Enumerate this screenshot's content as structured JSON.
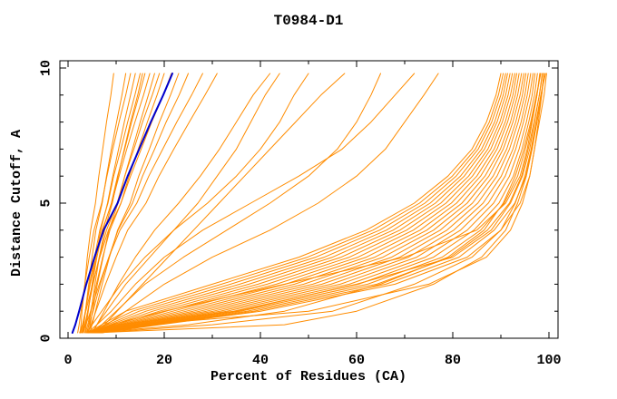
{
  "chart_data": {
    "type": "line",
    "title": "T0984-D1",
    "xlabel": "Percent of Residues (CA)",
    "ylabel": "Distance Cutoff, A",
    "xlim": [
      0,
      100
    ],
    "ylim": [
      0,
      10
    ],
    "x_major_ticks": [
      0,
      20,
      40,
      60,
      80,
      100
    ],
    "x_minor_step": 10,
    "y_major_ticks": [
      0,
      5,
      10
    ],
    "y_minor_step": 1,
    "grid": false,
    "legend": "none",
    "colors": {
      "model": "#ff8c00",
      "highlight": "#0000cd",
      "axis": "#000000",
      "background": "#ffffff"
    },
    "y_levels": [
      0.2,
      0.5,
      1,
      2,
      3,
      4,
      5,
      6,
      7,
      8,
      9,
      9.8
    ],
    "blue_curve": [
      0.9,
      1.5,
      2.3,
      3.8,
      5.5,
      7.4,
      10.3,
      12.4,
      14.8,
      17.2,
      19.8,
      21.7
    ],
    "orange_curves": [
      [
        2.5,
        2.7,
        2.9,
        3.5,
        4.0,
        4.7,
        5.7,
        6.4,
        7.2,
        8.0,
        8.9,
        9.5
      ],
      [
        3,
        3.3,
        3.6,
        4.3,
        5.0,
        5.8,
        7.1,
        8.0,
        9.0,
        10.1,
        11.2,
        12
      ],
      [
        2,
        2.3,
        2.7,
        3.5,
        4.4,
        5.4,
        7.0,
        8.1,
        9.3,
        10.6,
        12.0,
        13
      ],
      [
        3.5,
        3.8,
        4.2,
        5.0,
        5.8,
        6.8,
        8.2,
        9.3,
        10.5,
        11.7,
        13.0,
        14
      ],
      [
        2.8,
        3.2,
        3.6,
        4.5,
        5.5,
        6.6,
        8.3,
        9.5,
        11.0,
        12.4,
        13.9,
        15
      ],
      [
        4,
        4.3,
        4.8,
        5.6,
        6.5,
        7.6,
        9.2,
        10.4,
        11.7,
        13.0,
        14.5,
        15.5
      ],
      [
        3.2,
        3.6,
        4.1,
        5.0,
        6.0,
        7.2,
        9.0,
        10.3,
        11.8,
        13.2,
        14.8,
        16
      ],
      [
        2.6,
        3.0,
        3.6,
        4.6,
        5.8,
        7.1,
        9.1,
        10.6,
        12.2,
        13.9,
        15.7,
        17
      ],
      [
        4.2,
        4.6,
        5.1,
        6.1,
        7.3,
        8.5,
        10.4,
        11.8,
        13.4,
        15.0,
        16.7,
        18
      ],
      [
        3,
        3.5,
        4.1,
        5.2,
        6.5,
        8.0,
        10.2,
        11.8,
        13.7,
        15.5,
        17.5,
        19
      ],
      [
        3.6,
        4.1,
        4.7,
        5.9,
        7.2,
        8.7,
        11.0,
        12.7,
        14.6,
        16.5,
        18.5,
        20
      ],
      [
        2.4,
        3.0,
        3.7,
        5.1,
        6.6,
        8.4,
        11.0,
        13.0,
        15.2,
        17.4,
        19.8,
        21.5
      ],
      [
        4.5,
        5.0,
        5.7,
        7.1,
        8.6,
        10.3,
        12.9,
        14.7,
        16.9,
        19.0,
        21.3,
        23
      ],
      [
        3.8,
        4.4,
        5.2,
        6.7,
        8.5,
        10.4,
        13.4,
        15.5,
        18.0,
        20.4,
        23.1,
        25
      ],
      [
        3,
        3.7,
        4.7,
        6.5,
        8.5,
        10.8,
        14.3,
        16.8,
        19.7,
        22.6,
        25.7,
        28
      ],
      [
        4,
        4.8,
        5.8,
        7.8,
        10.0,
        12.4,
        16.2,
        18.9,
        22.0,
        25.2,
        28.5,
        31
      ],
      [
        5,
        6,
        7.5,
        10.5,
        14,
        18,
        23,
        27.5,
        31.5,
        35,
        38.5,
        42
      ],
      [
        5,
        6,
        8,
        12,
        17,
        22,
        27,
        31,
        35,
        38,
        41,
        44
      ],
      [
        4,
        5,
        7,
        11,
        16,
        22,
        29,
        35,
        40,
        44,
        47,
        50
      ],
      [
        6,
        7.6,
        10.2,
        15.5,
        20.8,
        26.1,
        31.4,
        36.7,
        42,
        47.3,
        52.6,
        57.5
      ],
      [
        5,
        7,
        10,
        16,
        24,
        33,
        42,
        50,
        56,
        60,
        63,
        65
      ],
      [
        4,
        6,
        9,
        14,
        20,
        28,
        38,
        48,
        57,
        63,
        68,
        72
      ],
      [
        5,
        8,
        12,
        20,
        30,
        42,
        52,
        60,
        66,
        70,
        74,
        77
      ],
      [
        4,
        7,
        12,
        30,
        48,
        62,
        72,
        79,
        84,
        87,
        89,
        90
      ],
      [
        4.2,
        7.6,
        13.4,
        31.9,
        49.8,
        63.4,
        73.1,
        79.9,
        84.7,
        87.6,
        89.5,
        90.5
      ],
      [
        4.3,
        8.2,
        14.8,
        33.8,
        51.5,
        64.8,
        74.2,
        80.7,
        85.3,
        88.1,
        90,
        91
      ],
      [
        4.5,
        8.8,
        16.2,
        35.7,
        53.3,
        66.2,
        75.3,
        81.6,
        86,
        88.7,
        90.5,
        91.4
      ],
      [
        4.6,
        9.4,
        17.6,
        37.6,
        55,
        67.6,
        76.4,
        82.4,
        86.6,
        89.2,
        91,
        91.9
      ],
      [
        4.8,
        10,
        19,
        39.5,
        56.8,
        69,
        77.5,
        83.3,
        87.3,
        89.8,
        91.5,
        92.4
      ],
      [
        4.9,
        10.6,
        20.4,
        41.4,
        58.5,
        70.4,
        78.6,
        84.1,
        87.9,
        90.3,
        92,
        92.9
      ],
      [
        5.1,
        11.2,
        21.8,
        43.3,
        60.3,
        71.8,
        79.7,
        85,
        88.6,
        90.9,
        92.5,
        93.3
      ],
      [
        5.2,
        11.8,
        23.2,
        45.2,
        62,
        73.2,
        80.8,
        85.8,
        89.2,
        91.4,
        93,
        93.8
      ],
      [
        5.4,
        12.4,
        24.6,
        47.1,
        63.8,
        74.6,
        81.9,
        86.7,
        89.9,
        92,
        93.5,
        94.3
      ],
      [
        5.5,
        13,
        26,
        49,
        65.5,
        76,
        83,
        87.5,
        90.5,
        92.5,
        94,
        94.8
      ],
      [
        5.7,
        13.6,
        27.4,
        50.9,
        67.3,
        77.4,
        84.1,
        88.4,
        91.2,
        93.1,
        94.5,
        95.2
      ],
      [
        5.8,
        14.2,
        28.8,
        52.8,
        69,
        78.8,
        85.2,
        89.2,
        91.8,
        93.6,
        95,
        95.7
      ],
      [
        6,
        14.8,
        30.2,
        54.7,
        70.8,
        80.2,
        86.3,
        90.1,
        92.5,
        94.2,
        95.5,
        96.2
      ],
      [
        6.1,
        15.4,
        31.6,
        56.6,
        72.5,
        81.6,
        87.4,
        90.9,
        93.1,
        94.7,
        96,
        96.7
      ],
      [
        6.3,
        16,
        33,
        58.5,
        74.3,
        83,
        88.5,
        91.8,
        93.8,
        95.3,
        96.5,
        97.1
      ],
      [
        6.4,
        16.6,
        34.4,
        60.4,
        76,
        84.4,
        89.6,
        92.6,
        94.4,
        95.8,
        97,
        97.6
      ],
      [
        6.6,
        17.2,
        35.8,
        62.3,
        77.8,
        85.8,
        90.7,
        93.5,
        95.1,
        96.4,
        97.5,
        98.1
      ],
      [
        6.7,
        17.8,
        37.2,
        64.2,
        79.5,
        87.2,
        91.8,
        94.3,
        95.7,
        96.9,
        98,
        98.6
      ],
      [
        6.9,
        18.4,
        38.6,
        66.1,
        81.3,
        88.6,
        92.9,
        95.2,
        96.4,
        97.5,
        98.5,
        99
      ],
      [
        7,
        19,
        40,
        68,
        83,
        90,
        94,
        96,
        97,
        98,
        99,
        99.5
      ],
      [
        5,
        9,
        20,
        45,
        70,
        85,
        91,
        94,
        95.5,
        96.5,
        97.5,
        98.2
      ],
      [
        6,
        15,
        50,
        75,
        87,
        92,
        94.5,
        96,
        97,
        97.8,
        98.5,
        99
      ],
      [
        5,
        10,
        35,
        60,
        80,
        88,
        92,
        94.5,
        96,
        97,
        98,
        98.7
      ],
      [
        5,
        25,
        45,
        65,
        79,
        86.5,
        90.5,
        93,
        94.8,
        96.2,
        97.4,
        98.3
      ],
      [
        6,
        30,
        55,
        72,
        84,
        90,
        93,
        95,
        96.3,
        97.3,
        98.3,
        99.3
      ],
      [
        5.5,
        45,
        60,
        76,
        86,
        91,
        93.5,
        95.3,
        96.5,
        97.5,
        98.4,
        99
      ]
    ]
  }
}
